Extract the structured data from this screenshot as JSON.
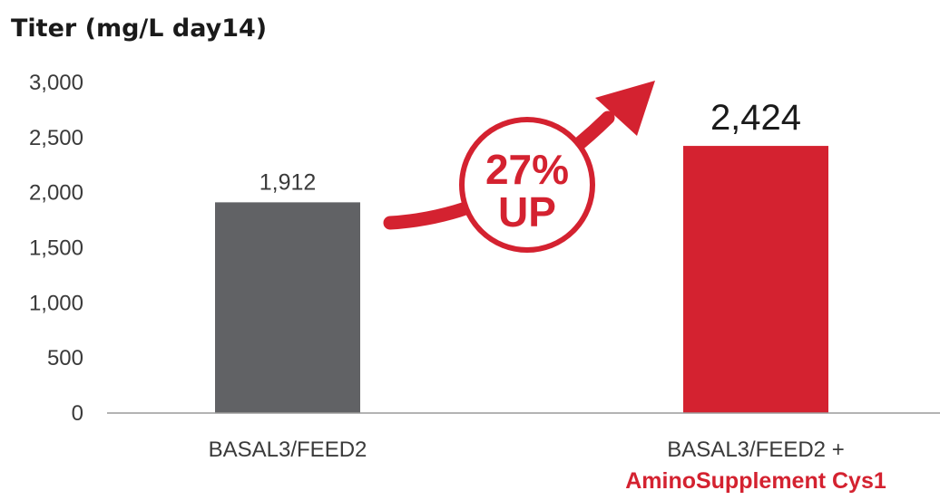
{
  "chart_data": {
    "type": "bar",
    "title": "Titer (mg/L day14)",
    "ylim": [
      0,
      3000
    ],
    "yticks": [
      0,
      500,
      1000,
      1500,
      2000,
      2500,
      3000
    ],
    "ytick_labels": [
      "0",
      "500",
      "1,000",
      "1,500",
      "2,000",
      "2,500",
      "3,000"
    ],
    "categories": [
      {
        "line1": "BASAL3/FEED2",
        "line2": ""
      },
      {
        "line1": "BASAL3/FEED2 +",
        "line2": "AminoSupplement Cys1"
      }
    ],
    "values": [
      1912,
      2424
    ],
    "value_labels": [
      "1,912",
      "2,424"
    ],
    "colors": [
      "#616265",
      "#d42230"
    ],
    "accent_color": "#d42230",
    "axis_color": "#9a9a9a",
    "annotation": {
      "line1": "27%",
      "line2": "UP"
    }
  }
}
